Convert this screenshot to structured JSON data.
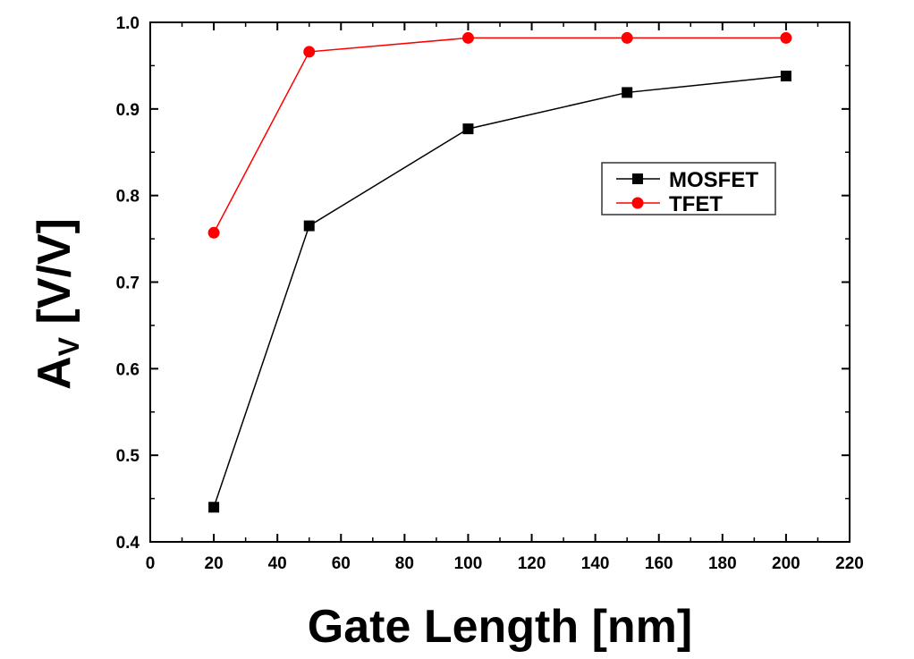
{
  "chart_data": {
    "type": "line",
    "title": "",
    "xlabel": "Gate Length [nm]",
    "ylabel_main": "A",
    "ylabel_sub": "V",
    "ylabel_unit": " [V/V]",
    "xlim": [
      0,
      220
    ],
    "ylim": [
      0.4,
      1.0
    ],
    "xticks": [
      0,
      20,
      40,
      60,
      80,
      100,
      120,
      140,
      160,
      180,
      200,
      220
    ],
    "yticks": [
      0.4,
      0.5,
      0.6,
      0.7,
      0.8,
      0.9,
      1.0
    ],
    "ytick_labels": [
      "0.4",
      "0.5",
      "0.6",
      "0.7",
      "0.8",
      "0.9",
      "1.0"
    ],
    "grid": false,
    "legend_placement": "right",
    "x": [
      20,
      50,
      100,
      150,
      200
    ],
    "series": [
      {
        "name": "MOSFET",
        "values": [
          0.44,
          0.765,
          0.877,
          0.919,
          0.938
        ],
        "color": "#000000",
        "marker": "square"
      },
      {
        "name": "TFET",
        "values": [
          0.757,
          0.966,
          0.982,
          0.982,
          0.982
        ],
        "color": "#ff0000",
        "marker": "circle"
      }
    ]
  }
}
